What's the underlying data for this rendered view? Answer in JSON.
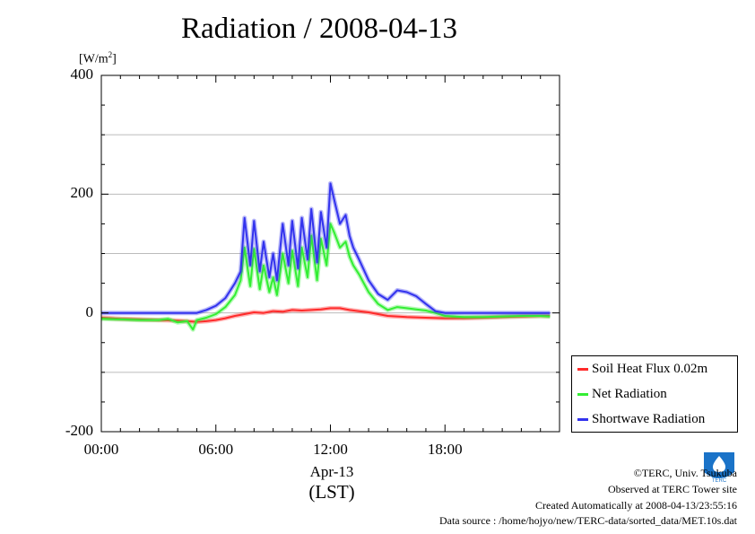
{
  "chart_data": {
    "type": "line",
    "title": "Radiation / 2008-04-13",
    "ylabel_prefix": "[W/m",
    "ylabel_sup": "2",
    "ylabel_suffix": "]",
    "ylim": [
      -200,
      400
    ],
    "yticks": [
      {
        "value": 400,
        "label": "400"
      },
      {
        "value": 200,
        "label": "200"
      },
      {
        "value": 0,
        "label": "0"
      },
      {
        "value": -200,
        "label": "-200"
      }
    ],
    "xlim": [
      0,
      24
    ],
    "xticks": [
      {
        "value": 0,
        "label": "00:00"
      },
      {
        "value": 6,
        "label": "06:00"
      },
      {
        "value": 12,
        "label": "12:00"
      },
      {
        "value": 18,
        "label": "18:00"
      }
    ],
    "x_date_label": "Apr-13",
    "x_unit_label": "(LST)",
    "grid": true,
    "legend_position": "right-bottom",
    "series": [
      {
        "name": "Soil Heat Flux 0.02m",
        "color": "#ff2a2a",
        "points": [
          [
            0,
            -8
          ],
          [
            1,
            -10
          ],
          [
            2,
            -11
          ],
          [
            3,
            -12
          ],
          [
            4,
            -13
          ],
          [
            5,
            -15
          ],
          [
            5.5,
            -14
          ],
          [
            6,
            -12
          ],
          [
            6.5,
            -9
          ],
          [
            7,
            -5
          ],
          [
            7.5,
            -2
          ],
          [
            8,
            1
          ],
          [
            8.5,
            0
          ],
          [
            9,
            3
          ],
          [
            9.5,
            2
          ],
          [
            10,
            5
          ],
          [
            10.5,
            4
          ],
          [
            11,
            5
          ],
          [
            11.5,
            6
          ],
          [
            12,
            8
          ],
          [
            12.5,
            8
          ],
          [
            13,
            5
          ],
          [
            13.5,
            3
          ],
          [
            14,
            1
          ],
          [
            14.5,
            -2
          ],
          [
            15,
            -5
          ],
          [
            16,
            -7
          ],
          [
            17,
            -8
          ],
          [
            18,
            -9
          ],
          [
            19,
            -9
          ],
          [
            20,
            -8
          ],
          [
            21,
            -7
          ],
          [
            22,
            -6
          ],
          [
            23,
            -5
          ],
          [
            23.5,
            -5
          ]
        ]
      },
      {
        "name": "Net Radiation",
        "color": "#33ee33",
        "points": [
          [
            0,
            -10
          ],
          [
            1,
            -11
          ],
          [
            2,
            -12
          ],
          [
            3,
            -12
          ],
          [
            3.5,
            -10
          ],
          [
            4,
            -16
          ],
          [
            4.5,
            -14
          ],
          [
            4.8,
            -28
          ],
          [
            5,
            -12
          ],
          [
            5.5,
            -8
          ],
          [
            6,
            -2
          ],
          [
            6.5,
            10
          ],
          [
            7,
            30
          ],
          [
            7.3,
            55
          ],
          [
            7.5,
            110
          ],
          [
            7.8,
            45
          ],
          [
            8,
            108
          ],
          [
            8.3,
            40
          ],
          [
            8.5,
            80
          ],
          [
            8.8,
            35
          ],
          [
            9,
            60
          ],
          [
            9.2,
            30
          ],
          [
            9.5,
            100
          ],
          [
            9.8,
            50
          ],
          [
            10,
            105
          ],
          [
            10.3,
            45
          ],
          [
            10.5,
            110
          ],
          [
            10.8,
            60
          ],
          [
            11,
            130
          ],
          [
            11.3,
            55
          ],
          [
            11.5,
            125
          ],
          [
            11.8,
            80
          ],
          [
            12,
            150
          ],
          [
            12.2,
            135
          ],
          [
            12.5,
            110
          ],
          [
            12.8,
            120
          ],
          [
            13,
            95
          ],
          [
            13.2,
            80
          ],
          [
            13.5,
            65
          ],
          [
            14,
            35
          ],
          [
            14.5,
            15
          ],
          [
            15,
            5
          ],
          [
            15.5,
            10
          ],
          [
            16,
            8
          ],
          [
            16.5,
            6
          ],
          [
            17,
            4
          ],
          [
            17.5,
            0
          ],
          [
            18,
            -5
          ],
          [
            19,
            -7
          ],
          [
            20,
            -7
          ],
          [
            21,
            -6
          ],
          [
            22,
            -5
          ],
          [
            23,
            -5
          ],
          [
            23.5,
            -6
          ]
        ]
      },
      {
        "name": "Shortwave Radiation",
        "color": "#3333ee",
        "points": [
          [
            0,
            0
          ],
          [
            1,
            0
          ],
          [
            2,
            0
          ],
          [
            3,
            0
          ],
          [
            4,
            0
          ],
          [
            5,
            0
          ],
          [
            5.5,
            5
          ],
          [
            6,
            12
          ],
          [
            6.5,
            25
          ],
          [
            7,
            50
          ],
          [
            7.3,
            70
          ],
          [
            7.5,
            160
          ],
          [
            7.8,
            80
          ],
          [
            8,
            155
          ],
          [
            8.3,
            70
          ],
          [
            8.5,
            120
          ],
          [
            8.8,
            60
          ],
          [
            9,
            100
          ],
          [
            9.2,
            55
          ],
          [
            9.5,
            150
          ],
          [
            9.8,
            80
          ],
          [
            10,
            155
          ],
          [
            10.3,
            75
          ],
          [
            10.5,
            160
          ],
          [
            10.8,
            90
          ],
          [
            11,
            175
          ],
          [
            11.3,
            85
          ],
          [
            11.5,
            170
          ],
          [
            11.8,
            110
          ],
          [
            12,
            218
          ],
          [
            12.2,
            190
          ],
          [
            12.5,
            150
          ],
          [
            12.8,
            165
          ],
          [
            13,
            130
          ],
          [
            13.2,
            110
          ],
          [
            13.5,
            90
          ],
          [
            14,
            55
          ],
          [
            14.5,
            32
          ],
          [
            15,
            22
          ],
          [
            15.5,
            38
          ],
          [
            16,
            35
          ],
          [
            16.5,
            28
          ],
          [
            17,
            15
          ],
          [
            17.5,
            3
          ],
          [
            18,
            0
          ],
          [
            19,
            0
          ],
          [
            20,
            0
          ],
          [
            21,
            0
          ],
          [
            22,
            0
          ],
          [
            23,
            0
          ],
          [
            23.5,
            0
          ]
        ]
      }
    ]
  },
  "footer": {
    "copyright": "©TERC, Univ. Tsukuba",
    "observed": "Observed at TERC Tower site",
    "created": "Created Automatically at 2008-04-13/23:55:16",
    "source": "Data source : /home/hojyo/new/TERC-data/sorted_data/MET.10s.dat",
    "logo_text": "TERC"
  }
}
